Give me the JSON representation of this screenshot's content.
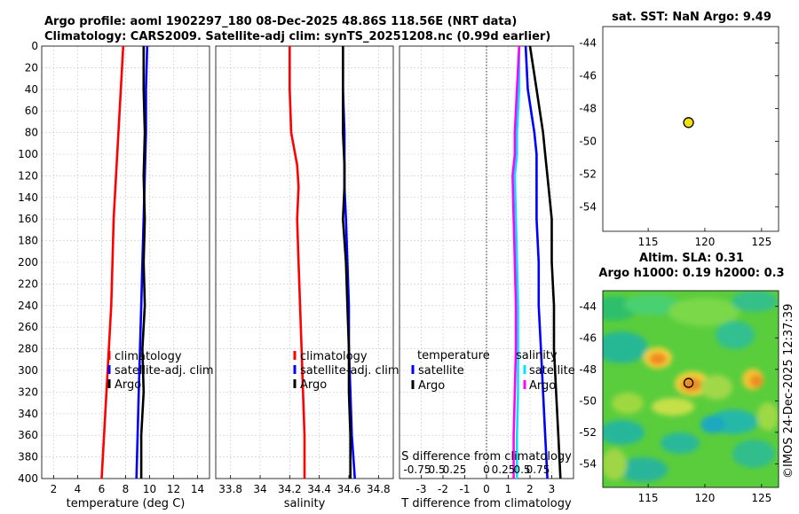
{
  "header": {
    "title_line1": "Argo profile: aoml 1902297_180 08-Dec-2025 48.86S 118.56E (NRT data)",
    "title_line2": "Climatology: CARS2009. Satellite-adj clim: synTS_20251208.nc (0.99d earlier)"
  },
  "colors": {
    "red": "#ff0000",
    "blue": "#0000ff",
    "black": "#000000",
    "magenta": "#ff00ff",
    "cyan": "#00e5ff"
  },
  "chart_data": [
    {
      "type": "line",
      "name": "temperature-profile",
      "xlabel": "temperature (deg C)",
      "xlim": [
        1,
        15
      ],
      "ylim": [
        400,
        0
      ],
      "xticks": [
        2,
        4,
        6,
        8,
        10,
        12,
        14
      ],
      "yticks": [
        0,
        20,
        40,
        60,
        80,
        100,
        120,
        140,
        160,
        180,
        200,
        220,
        240,
        260,
        280,
        300,
        320,
        340,
        360,
        380,
        400
      ],
      "depth": [
        0,
        40,
        80,
        120,
        160,
        200,
        240,
        280,
        320,
        360,
        400
      ],
      "legend": [
        "climatology",
        "satellite-adj. clim",
        "Argo"
      ],
      "series": [
        {
          "name": "climatology",
          "color": "red",
          "values": [
            7.8,
            7.6,
            7.4,
            7.2,
            7.0,
            6.9,
            6.8,
            6.6,
            6.4,
            6.2,
            6.0
          ]
        },
        {
          "name": "satellite-adj. clim",
          "color": "blue",
          "values": [
            9.8,
            9.7,
            9.7,
            9.6,
            9.5,
            9.4,
            9.3,
            9.2,
            9.1,
            9.0,
            8.9
          ]
        },
        {
          "name": "Argo",
          "color": "black",
          "values": [
            9.5,
            9.5,
            9.6,
            9.5,
            9.6,
            9.5,
            9.6,
            9.4,
            9.5,
            9.3,
            9.3
          ]
        }
      ]
    },
    {
      "type": "line",
      "name": "salinity-profile",
      "xlabel": "salinity",
      "xlim": [
        33.7,
        34.9
      ],
      "ylim": [
        400,
        0
      ],
      "xticks": [
        33.8,
        34.0,
        34.2,
        34.4,
        34.6,
        34.8
      ],
      "xticklabels": [
        "33.8",
        "34",
        "34.2",
        "34.4",
        "34.6",
        "34.8"
      ],
      "depth": [
        0,
        40,
        80,
        110,
        130,
        160,
        200,
        240,
        280,
        320,
        360,
        400
      ],
      "legend": [
        "climatology",
        "satellite-adj. clim",
        "Argo"
      ],
      "series": [
        {
          "name": "climatology",
          "color": "red",
          "values": [
            34.2,
            34.2,
            34.21,
            34.25,
            34.26,
            34.25,
            34.26,
            34.27,
            34.28,
            34.29,
            34.3,
            34.3
          ]
        },
        {
          "name": "satellite-adj. clim",
          "color": "blue",
          "values": [
            34.56,
            34.56,
            34.57,
            34.57,
            34.57,
            34.58,
            34.59,
            34.6,
            34.6,
            34.61,
            34.62,
            34.64
          ]
        },
        {
          "name": "Argo",
          "color": "black",
          "values": [
            34.56,
            34.56,
            34.56,
            34.57,
            34.57,
            34.56,
            34.58,
            34.59,
            34.6,
            34.6,
            34.61,
            34.61
          ]
        }
      ]
    },
    {
      "type": "line",
      "name": "difference-profile",
      "xlabel": "T difference from climatology",
      "xlabel_top": "S difference from climatology",
      "xlim": [
        -4,
        4
      ],
      "ylim": [
        400,
        0
      ],
      "xticks": [
        -3,
        -2,
        -1,
        0,
        1,
        2,
        3
      ],
      "xticks_top": [
        "-0.75",
        "0.5",
        "0.25",
        "0",
        "0.25",
        "0.5",
        "0.75"
      ],
      "depth": [
        0,
        40,
        80,
        100,
        120,
        160,
        200,
        240,
        280,
        320,
        360,
        400
      ],
      "legend_temperature_title": "temperature",
      "legend_temperature": [
        "satellite",
        "Argo"
      ],
      "legend_salinity_title": "salinity",
      "legend_salinity": [
        "satellite",
        "Argo"
      ],
      "series": [
        {
          "name": "T satellite",
          "color": "blue",
          "values": [
            1.8,
            1.9,
            2.2,
            2.3,
            2.3,
            2.3,
            2.4,
            2.4,
            2.5,
            2.6,
            2.7,
            2.8
          ]
        },
        {
          "name": "T Argo",
          "color": "black",
          "values": [
            2.0,
            2.3,
            2.6,
            2.7,
            2.8,
            3.0,
            3.0,
            3.1,
            3.1,
            3.2,
            3.3,
            3.4
          ]
        },
        {
          "name": "S satellite",
          "color": "cyan",
          "values": [
            1.5,
            1.5,
            1.4,
            1.4,
            1.3,
            1.35,
            1.4,
            1.45,
            1.45,
            1.45,
            1.4,
            1.4
          ]
        },
        {
          "name": "S Argo",
          "color": "magenta",
          "values": [
            1.5,
            1.4,
            1.3,
            1.3,
            1.2,
            1.25,
            1.3,
            1.35,
            1.35,
            1.3,
            1.25,
            1.25
          ]
        }
      ]
    },
    {
      "type": "scatter",
      "name": "sst-map",
      "title": "sat. SST: NaN Argo: 9.49",
      "xlim": [
        111,
        126.5
      ],
      "ylim": [
        -55.5,
        -43
      ],
      "xticks": [
        115,
        120,
        125
      ],
      "yticks": [
        -44,
        -46,
        -48,
        -50,
        -52,
        -54
      ],
      "points": [
        {
          "x": 118.56,
          "y": -48.86
        }
      ]
    },
    {
      "type": "heatmap",
      "name": "sla-map",
      "title_line1": "Altim. SLA: 0.31",
      "title_line2": "Argo h1000: 0.19 h2000: 0.3",
      "xlim": [
        111,
        126.5
      ],
      "ylim": [
        -55.5,
        -43
      ],
      "xticks": [
        115,
        120,
        125
      ],
      "yticks": [
        -44,
        -46,
        -48,
        -50,
        -52,
        -54
      ],
      "points": [
        {
          "x": 118.56,
          "y": -48.86
        }
      ]
    }
  ],
  "footer": {
    "copyright": "©IMOS 24-Dec-2025 12:37:39"
  }
}
